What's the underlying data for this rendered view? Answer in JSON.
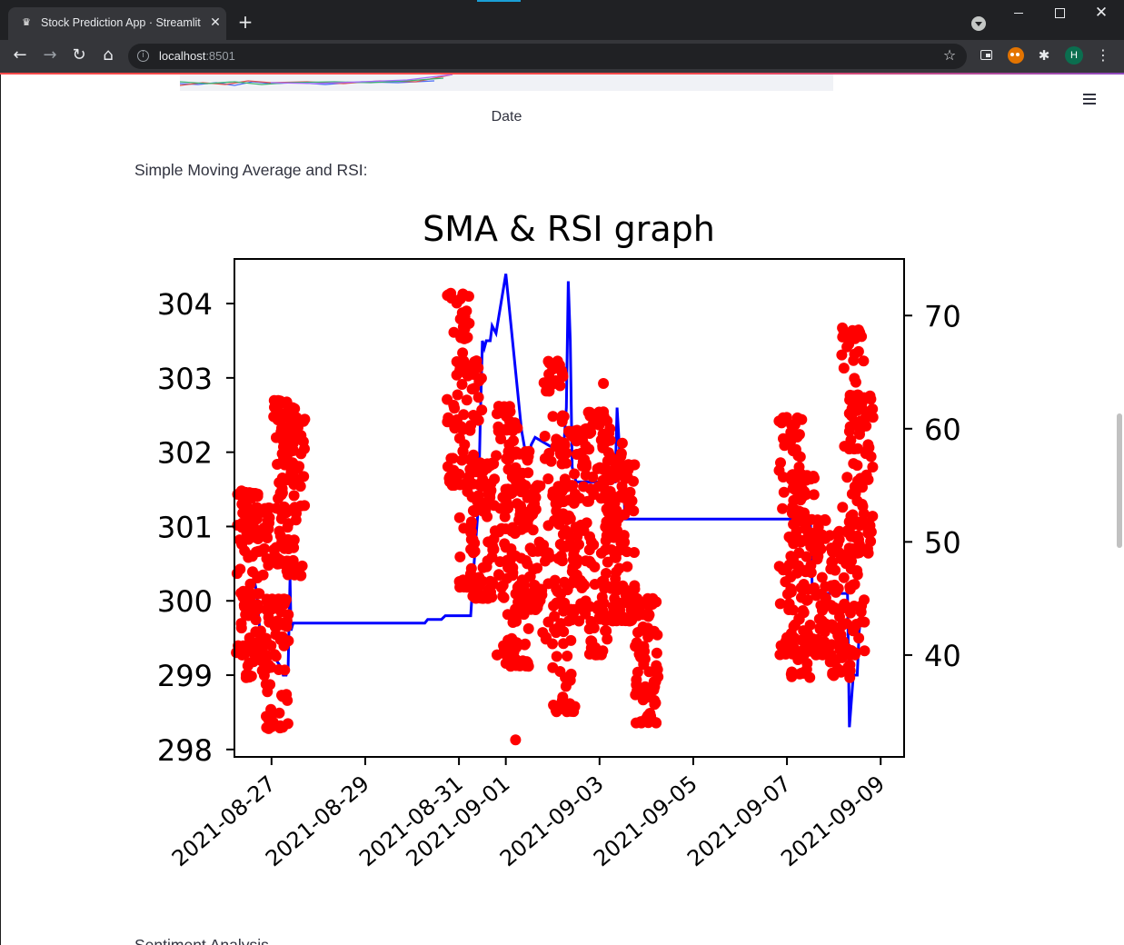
{
  "browser": {
    "tab_title": "Stock Prediction App · Streamlit",
    "url_host": "localhost",
    "url_port": ":8501",
    "profile_initial": "H"
  },
  "page": {
    "date_axis_label": "Date",
    "section_label": "Simple Moving Average and RSI:",
    "next_section_label": "Sentiment Analysis"
  },
  "colors": {
    "sma_line": "#0000ff",
    "rsi_points": "#ff0000",
    "chrome_dark": "#202124",
    "streamlit_accent": "#ff4b4b"
  },
  "chart_data": {
    "type": "line",
    "title": "SMA & RSI graph",
    "xlabel": "",
    "ylabel": "",
    "x_ticks": [
      "2021-08-27",
      "2021-08-29",
      "2021-08-31",
      "2021-09-01",
      "2021-09-03",
      "2021-09-05",
      "2021-09-07",
      "2021-09-09"
    ],
    "y_left_ticks": [
      "298",
      "299",
      "300",
      "301",
      "302",
      "303",
      "304"
    ],
    "y_left_lim": [
      297.9,
      304.6
    ],
    "y_right_ticks": [
      "40",
      "50",
      "60",
      "70"
    ],
    "y_right_lim": [
      31,
      75
    ],
    "x_lim": [
      "2021-08-26 05:00",
      "2021-09-09 12:00"
    ],
    "grid": false,
    "series": [
      {
        "axis": "left",
        "style": "line",
        "x": [
          "2021-08-26 15:00",
          "2021-08-26 16:30",
          "2021-08-26 18:00",
          "2021-08-26 20:00",
          "2021-08-27 00:00",
          "2021-08-27 05:00",
          "2021-08-27 06:00",
          "2021-08-27 06:30",
          "2021-08-27 07:00",
          "2021-08-27 07:30",
          "2021-08-27 08:30",
          "2021-08-27 09:30",
          "2021-08-27 10:00",
          "2021-08-27 11:00",
          "2021-08-27 12:00",
          "2021-08-30 05:00",
          "2021-08-30 06:30",
          "2021-08-30 08:00",
          "2021-08-30 09:30",
          "2021-08-30 11:00",
          "2021-08-30 13:00",
          "2021-08-30 15:00",
          "2021-08-30 17:00",
          "2021-08-30 20:00",
          "2021-08-31 06:00",
          "2021-08-31 08:00",
          "2021-08-31 10:00",
          "2021-08-31 11:00",
          "2021-08-31 12:00",
          "2021-08-31 13:00",
          "2021-08-31 14:00",
          "2021-08-31 16:00",
          "2021-08-31 17:00",
          "2021-08-31 19:00",
          "2021-09-01 00:00",
          "2021-09-01 08:00",
          "2021-09-01 10:00",
          "2021-09-01 11:00",
          "2021-09-01 12:00",
          "2021-09-01 13:00",
          "2021-09-01 15:00",
          "2021-09-02 04:00",
          "2021-09-02 06:00",
          "2021-09-02 07:00",
          "2021-09-02 08:00",
          "2021-09-02 09:00",
          "2021-09-02 10:00",
          "2021-09-02 12:00",
          "2021-09-02 18:00",
          "2021-09-03 05:00",
          "2021-09-03 06:00",
          "2021-09-03 07:00",
          "2021-09-03 08:00",
          "2021-09-03 09:00",
          "2021-09-03 11:00",
          "2021-09-03 12:00",
          "2021-09-03 13:00",
          "2021-09-07 04:00",
          "2021-09-07 07:00",
          "2021-09-07 08:00",
          "2021-09-07 09:00",
          "2021-09-07 10:00",
          "2021-09-07 12:00",
          "2021-09-07 13:00",
          "2021-09-08 04:00",
          "2021-09-08 06:00",
          "2021-09-08 07:00",
          "2021-09-08 08:00",
          "2021-09-08 10:00",
          "2021-09-08 12:00",
          "2021-09-08 13:00",
          "2021-09-08 14:00",
          "2021-09-08 16:00"
        ],
        "y": [
          300.3,
          300.1,
          299.6,
          299.3,
          299.3,
          299.1,
          299.0,
          299.0,
          299.0,
          299.0,
          299.1,
          300.3,
          299.6,
          299.7,
          299.7,
          299.7,
          299.7,
          299.75,
          299.75,
          299.75,
          299.75,
          299.75,
          299.8,
          299.8,
          299.8,
          300.6,
          301.3,
          302.5,
          303.5,
          303.4,
          303.5,
          303.5,
          303.7,
          303.6,
          304.4,
          302.3,
          302.0,
          302.0,
          301.9,
          302.1,
          302.2,
          302.0,
          302.2,
          302.6,
          304.3,
          303.5,
          301.8,
          301.6,
          301.6,
          301.6,
          301.6,
          301.6,
          301.6,
          302.6,
          301.7,
          302.0,
          301.1,
          301.1,
          301.1,
          301.1,
          301.1,
          301.1,
          301.1,
          300.1,
          300.1,
          300.1,
          300.1,
          298.3,
          299.0,
          299.0,
          299.6,
          299.8,
          299.9
        ]
      },
      {
        "axis": "right",
        "style": "scatter",
        "name": "",
        "clusters": [
          {
            "x": "2021-08-26 12:00",
            "y_range": [
              40,
              54.5
            ]
          },
          {
            "x": "2021-08-26 17:00",
            "y_range": [
              38,
              53
            ]
          },
          {
            "x": "2021-08-27 03:00",
            "y_range": [
              33.5,
              45
            ]
          },
          {
            "x": "2021-08-27 07:00",
            "y_range": [
              48,
              62.5
            ]
          },
          {
            "x": "2021-08-27 11:00",
            "y_range": [
              47,
              61
            ]
          },
          {
            "x": "2021-08-31 00:00",
            "y_range": [
              55,
              72
            ]
          },
          {
            "x": "2021-08-31 06:00",
            "y_range": [
              46,
              66
            ]
          },
          {
            "x": "2021-08-31 12:00",
            "y_range": [
              45,
              57
            ]
          },
          {
            "x": "2021-09-01 00:00",
            "y_range": [
              40,
              62
            ]
          },
          {
            "x": "2021-09-01 06:00",
            "y_range": [
              39,
              58
            ]
          },
          {
            "x": "2021-09-01 12:00",
            "y_range": [
              44,
              55
            ]
          },
          {
            "x": "2021-09-02 00:00",
            "y_range": [
              41,
              66
            ]
          },
          {
            "x": "2021-09-02 06:00",
            "y_range": [
              35,
              55
            ]
          },
          {
            "x": "2021-09-02 12:00",
            "y_range": [
              43,
              60
            ]
          },
          {
            "x": "2021-09-03 00:00",
            "y_range": [
              40,
              61.5
            ]
          },
          {
            "x": "2021-09-03 06:00",
            "y_range": [
              43,
              59
            ]
          },
          {
            "x": "2021-09-03 12:00",
            "y_range": [
              43,
              57
            ]
          },
          {
            "x": "2021-09-04 00:00",
            "y_range": [
              34,
              45
            ]
          },
          {
            "x": "2021-09-07 02:00",
            "y_range": [
              40,
              61
            ]
          },
          {
            "x": "2021-09-07 08:00",
            "y_range": [
              38,
              56
            ]
          },
          {
            "x": "2021-09-07 14:00",
            "y_range": [
              40,
              52
            ]
          },
          {
            "x": "2021-09-08 04:00",
            "y_range": [
              38,
              51
            ]
          },
          {
            "x": "2021-09-08 10:00",
            "y_range": [
              40,
              69
            ]
          },
          {
            "x": "2021-09-08 14:00",
            "y_range": [
              49,
              63
            ]
          }
        ],
        "outliers": [
          {
            "x": "2021-08-31 09:00",
            "y": 66
          },
          {
            "x": "2021-09-01 05:00",
            "y": 32.5
          },
          {
            "x": "2021-09-03 02:00",
            "y": 64
          },
          {
            "x": "2021-09-08 02:00",
            "y": 38.8
          }
        ]
      }
    ]
  }
}
